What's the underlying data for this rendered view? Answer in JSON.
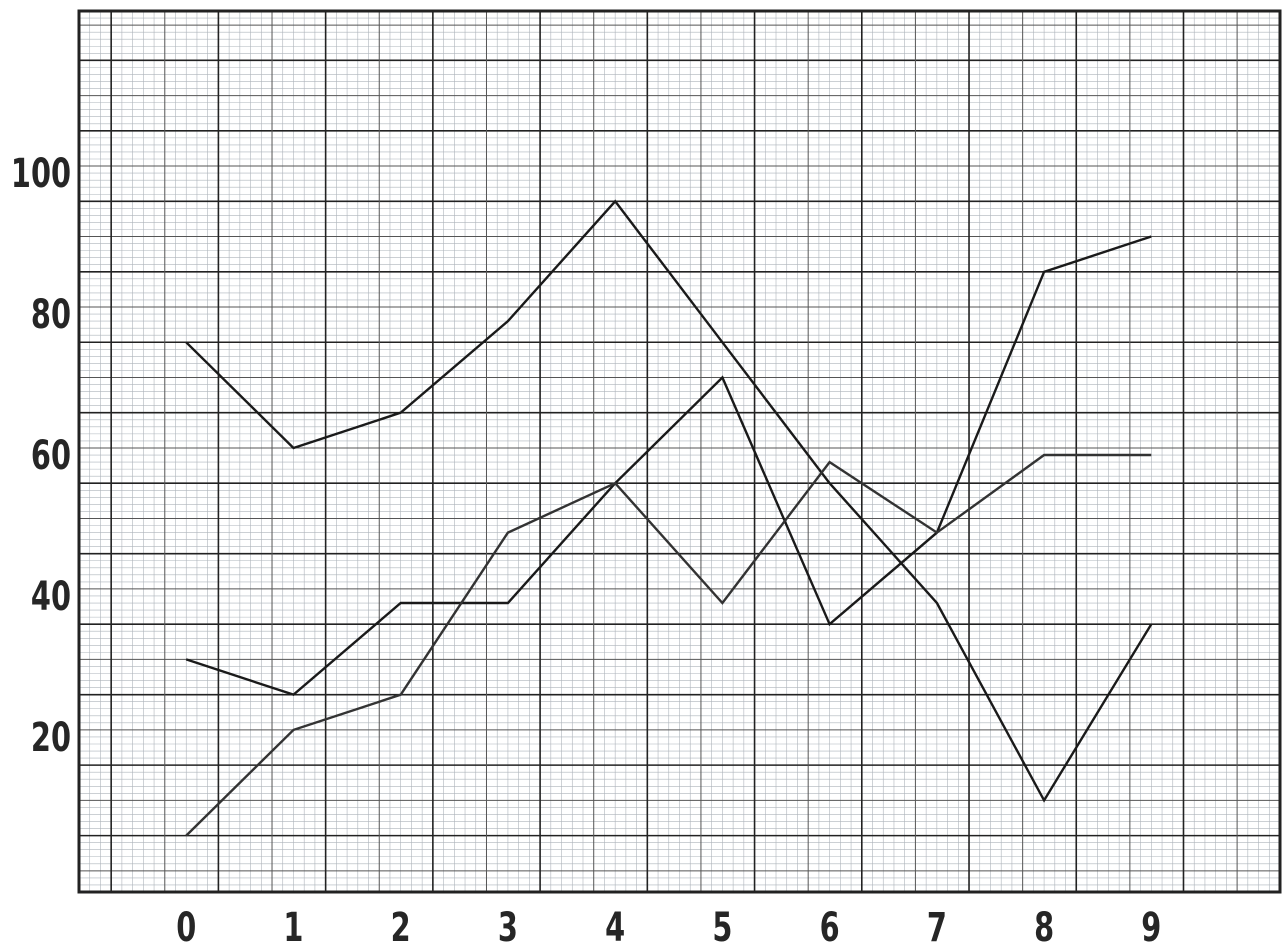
{
  "chart_data": {
    "type": "line",
    "title": "",
    "xlabel": "",
    "ylabel": "",
    "xlim": [
      -1,
      10.2
    ],
    "ylim": [
      -2,
      123
    ],
    "x": [
      0,
      1,
      2,
      3,
      4,
      5,
      6,
      7,
      8,
      9
    ],
    "x_ticks": [
      "0",
      "1",
      "2",
      "3",
      "4",
      "5",
      "6",
      "7",
      "8",
      "9"
    ],
    "y_ticks": [
      {
        "value": 20,
        "label": "20"
      },
      {
        "value": 40,
        "label": "40"
      },
      {
        "value": 60,
        "label": "60"
      },
      {
        "value": 80,
        "label": "80"
      },
      {
        "value": 100,
        "label": "100"
      }
    ],
    "grid": true,
    "legend": "none",
    "series": [
      {
        "values": [
          76,
          61,
          66,
          79,
          96,
          76,
          56,
          39,
          11,
          36
        ],
        "color": "#1a1a1a"
      },
      {
        "values": [
          31,
          26,
          39,
          39,
          56,
          71,
          36,
          49,
          86,
          91
        ],
        "color": "#1a1a1a"
      },
      {
        "values": [
          6,
          21,
          26,
          49,
          56,
          39,
          59,
          49,
          60,
          60
        ],
        "color": "#333333"
      }
    ],
    "colors": {
      "background": "#ffffff",
      "minor_grid": "#aeb4bb",
      "mid_grid": "#555555",
      "major_grid": "#222222",
      "frame": "#222222"
    }
  }
}
